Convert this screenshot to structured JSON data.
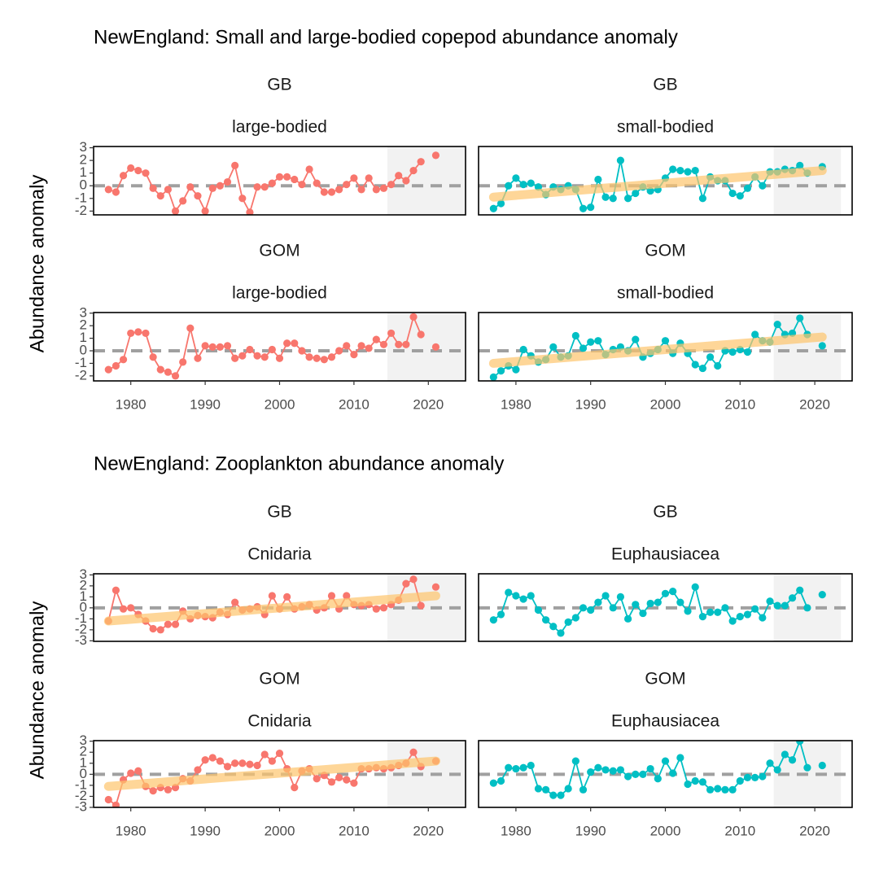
{
  "figures": [
    {
      "title": "NewEngland: Small and large-bodied copepod abundance anomaly",
      "y_label": "Abundance anomaly"
    },
    {
      "title": "NewEngland: Zooplankton abundance anomaly",
      "y_label": "Abundance anomaly"
    }
  ],
  "chart_data": [
    {
      "type": "line",
      "region": "GB",
      "group": "large-bodied",
      "color": "#f8766d",
      "x": [
        1977,
        1978,
        1979,
        1980,
        1981,
        1982,
        1983,
        1984,
        1985,
        1986,
        1987,
        1988,
        1989,
        1990,
        1991,
        1992,
        1993,
        1994,
        1995,
        1996,
        1997,
        1998,
        1999,
        2000,
        2001,
        2002,
        2003,
        2004,
        2005,
        2006,
        2007,
        2008,
        2009,
        2010,
        2011,
        2012,
        2013,
        2014,
        2015,
        2016,
        2017,
        2018,
        2019,
        2020,
        2021
      ],
      "values": [
        -0.3,
        -0.5,
        0.8,
        1.4,
        1.2,
        1.0,
        -0.2,
        -0.8,
        -0.3,
        -2.0,
        -1.2,
        -0.1,
        -0.8,
        -2.0,
        -0.2,
        0.0,
        0.3,
        1.6,
        -1.0,
        -2.1,
        -0.1,
        -0.1,
        0.2,
        0.7,
        0.7,
        0.5,
        0.1,
        1.3,
        0.2,
        -0.5,
        -0.5,
        -0.3,
        0.1,
        0.6,
        -0.3,
        0.6,
        -0.3,
        -0.2,
        0.1,
        0.8,
        0.4,
        1.2,
        1.9,
        null,
        2.4
      ],
      "xlim": [
        1975,
        2025
      ],
      "ylim": [
        -2.3,
        3.1
      ],
      "yticks": [
        -2,
        -1,
        0,
        1,
        2,
        3
      ],
      "reference_line": 0,
      "highlight": [
        2014.5,
        2025
      ]
    },
    {
      "type": "line",
      "region": "GB",
      "group": "small-bodied",
      "color": "#00bfc4",
      "x": [
        1977,
        1978,
        1979,
        1980,
        1981,
        1982,
        1983,
        1984,
        1985,
        1986,
        1987,
        1988,
        1989,
        1990,
        1991,
        1992,
        1993,
        1994,
        1995,
        1996,
        1997,
        1998,
        1999,
        2000,
        2001,
        2002,
        2003,
        2004,
        2005,
        2006,
        2007,
        2008,
        2009,
        2010,
        2011,
        2012,
        2013,
        2014,
        2015,
        2016,
        2017,
        2018,
        2019,
        2020,
        2021
      ],
      "values": [
        -1.8,
        -1.4,
        0.0,
        0.6,
        0.1,
        0.2,
        -0.1,
        -0.7,
        -0.1,
        -0.3,
        0.0,
        -0.3,
        -1.8,
        -1.7,
        0.5,
        -0.9,
        -1.0,
        2.0,
        -1.0,
        -0.6,
        -0.1,
        -0.4,
        -0.3,
        0.6,
        1.3,
        1.2,
        1.1,
        1.2,
        -1.0,
        0.7,
        0.4,
        0.4,
        -0.6,
        -0.8,
        -0.2,
        0.7,
        0.0,
        1.1,
        1.1,
        1.3,
        1.2,
        1.6,
        1.0,
        null,
        1.5
      ],
      "trend": {
        "x": [
          1977,
          2021
        ],
        "values": [
          -0.9,
          1.2
        ],
        "color": "#fdc46c"
      },
      "xlim": [
        1975,
        2025
      ],
      "ylim": [
        -2.3,
        3.1
      ],
      "reference_line": 0,
      "highlight": [
        2014.5,
        2023.5
      ]
    },
    {
      "type": "line",
      "region": "GOM",
      "group": "large-bodied",
      "color": "#f8766d",
      "x": [
        1977,
        1978,
        1979,
        1980,
        1981,
        1982,
        1983,
        1984,
        1985,
        1986,
        1987,
        1988,
        1989,
        1990,
        1991,
        1992,
        1993,
        1994,
        1995,
        1996,
        1997,
        1998,
        1999,
        2000,
        2001,
        2002,
        2003,
        2004,
        2005,
        2006,
        2007,
        2008,
        2009,
        2010,
        2011,
        2012,
        2013,
        2014,
        2015,
        2016,
        2017,
        2018,
        2019,
        2020,
        2021
      ],
      "values": [
        -1.5,
        -1.2,
        -0.7,
        1.4,
        1.5,
        1.4,
        -0.5,
        -1.5,
        -1.7,
        -2.0,
        -0.9,
        1.8,
        -0.6,
        0.4,
        0.3,
        0.3,
        0.4,
        -0.6,
        -0.4,
        0.1,
        -0.4,
        -0.5,
        0.1,
        -0.6,
        0.6,
        0.6,
        0.0,
        -0.5,
        -0.6,
        -0.7,
        -0.5,
        0.0,
        0.4,
        -0.3,
        0.4,
        0.2,
        0.9,
        0.5,
        1.4,
        0.5,
        0.5,
        2.7,
        1.3,
        null,
        0.3
      ],
      "xlim": [
        1975,
        2025
      ],
      "xticks": [
        1980,
        1990,
        2000,
        2010,
        2020
      ],
      "ylim": [
        -2.4,
        3.05
      ],
      "yticks": [
        -2,
        -1,
        0,
        1,
        2,
        3
      ],
      "reference_line": 0,
      "highlight": [
        2014.5,
        2025
      ]
    },
    {
      "type": "line",
      "region": "GOM",
      "group": "small-bodied",
      "color": "#00bfc4",
      "x": [
        1977,
        1978,
        1979,
        1980,
        1981,
        1982,
        1983,
        1984,
        1985,
        1986,
        1987,
        1988,
        1989,
        1990,
        1991,
        1992,
        1993,
        1994,
        1995,
        1996,
        1997,
        1998,
        1999,
        2000,
        2001,
        2002,
        2003,
        2004,
        2005,
        2006,
        2007,
        2008,
        2009,
        2010,
        2011,
        2012,
        2013,
        2014,
        2015,
        2016,
        2017,
        2018,
        2019,
        2020,
        2021
      ],
      "values": [
        -2.1,
        -1.6,
        -1.2,
        -1.5,
        0.1,
        -0.4,
        -0.9,
        -0.7,
        0.3,
        -0.5,
        -0.4,
        1.2,
        0.2,
        0.7,
        0.8,
        -0.3,
        0.1,
        0.3,
        0.0,
        0.9,
        -0.5,
        -0.2,
        0.1,
        0.8,
        -0.2,
        0.6,
        -0.2,
        -1.1,
        -1.4,
        -0.5,
        -1.2,
        0.0,
        -0.1,
        0.1,
        -0.1,
        1.3,
        0.8,
        0.7,
        2.1,
        1.3,
        1.4,
        2.6,
        1.3,
        null,
        0.4
      ],
      "trend": {
        "x": [
          1977,
          2021
        ],
        "values": [
          -1.0,
          1.1
        ],
        "color": "#fdc46c"
      },
      "xlim": [
        1975,
        2025
      ],
      "xticks": [
        1980,
        1990,
        2000,
        2010,
        2020
      ],
      "ylim": [
        -2.4,
        3.05
      ],
      "reference_line": 0,
      "highlight": [
        2014.5,
        2023.5
      ]
    },
    {
      "type": "line",
      "region": "GB",
      "group": "Cnidaria",
      "color": "#f8766d",
      "x": [
        1977,
        1978,
        1979,
        1980,
        1981,
        1982,
        1983,
        1984,
        1985,
        1986,
        1987,
        1988,
        1989,
        1990,
        1991,
        1992,
        1993,
        1994,
        1995,
        1996,
        1997,
        1998,
        1999,
        2000,
        2001,
        2002,
        2003,
        2004,
        2005,
        2006,
        2007,
        2008,
        2009,
        2010,
        2011,
        2012,
        2013,
        2014,
        2015,
        2016,
        2017,
        2018,
        2019,
        2020,
        2021
      ],
      "values": [
        -1.2,
        1.6,
        -0.1,
        0.0,
        -0.6,
        -1.2,
        -1.9,
        -2.0,
        -1.5,
        -1.5,
        -0.3,
        -1.0,
        -0.7,
        -0.8,
        -0.9,
        -0.4,
        -0.6,
        0.5,
        -0.2,
        -0.1,
        0.1,
        -0.6,
        1.1,
        -0.1,
        1.0,
        -0.1,
        0.1,
        0.3,
        -0.2,
        0.0,
        1.1,
        -0.1,
        1.1,
        0.3,
        0.2,
        0.3,
        -0.1,
        0.0,
        0.3,
        0.7,
        2.2,
        2.6,
        0.2,
        null,
        1.9
      ],
      "trend": {
        "x": [
          1977,
          2021
        ],
        "values": [
          -1.2,
          1.1
        ],
        "color": "#fdc46c"
      },
      "xlim": [
        1975,
        2025
      ],
      "ylim": [
        -3.05,
        3.1
      ],
      "yticks": [
        -3,
        -2,
        -1,
        0,
        1,
        2,
        3
      ],
      "reference_line": 0,
      "highlight": [
        2014.5,
        2025
      ]
    },
    {
      "type": "line",
      "region": "GB",
      "group": "Euphausiacea",
      "color": "#00bfc4",
      "x": [
        1977,
        1978,
        1979,
        1980,
        1981,
        1982,
        1983,
        1984,
        1985,
        1986,
        1987,
        1988,
        1989,
        1990,
        1991,
        1992,
        1993,
        1994,
        1995,
        1996,
        1997,
        1998,
        1999,
        2000,
        2001,
        2002,
        2003,
        2004,
        2005,
        2006,
        2007,
        2008,
        2009,
        2010,
        2011,
        2012,
        2013,
        2014,
        2015,
        2016,
        2017,
        2018,
        2019,
        2020,
        2021
      ],
      "values": [
        -1.1,
        -0.6,
        1.4,
        1.1,
        0.8,
        1.1,
        -0.2,
        -1.1,
        -1.7,
        -2.3,
        -1.3,
        -0.9,
        0.0,
        -0.2,
        0.5,
        1.1,
        0.0,
        1.0,
        -1.0,
        0.3,
        -0.5,
        0.4,
        0.5,
        1.3,
        1.5,
        0.5,
        -0.3,
        1.9,
        -0.8,
        -0.4,
        -0.4,
        0.0,
        -1.2,
        -0.8,
        -0.6,
        -0.1,
        -0.9,
        0.6,
        0.2,
        0.2,
        0.9,
        1.6,
        0.0,
        null,
        1.2
      ],
      "xlim": [
        1975,
        2025
      ],
      "ylim": [
        -3.05,
        3.1
      ],
      "reference_line": 0,
      "highlight": [
        2014.5,
        2023.5
      ]
    },
    {
      "type": "line",
      "region": "GOM",
      "group": "Cnidaria",
      "color": "#f8766d",
      "x": [
        1977,
        1978,
        1979,
        1980,
        1981,
        1982,
        1983,
        1984,
        1985,
        1986,
        1987,
        1988,
        1989,
        1990,
        1991,
        1992,
        1993,
        1994,
        1995,
        1996,
        1997,
        1998,
        1999,
        2000,
        2001,
        2002,
        2003,
        2004,
        2005,
        2006,
        2007,
        2008,
        2009,
        2010,
        2011,
        2012,
        2013,
        2014,
        2015,
        2016,
        2017,
        2018,
        2019,
        2020,
        2021
      ],
      "values": [
        -2.3,
        -2.8,
        -0.5,
        0.1,
        0.3,
        -1.1,
        -1.5,
        -1.2,
        -1.4,
        -1.2,
        -0.4,
        -0.6,
        0.4,
        1.3,
        1.5,
        1.2,
        0.7,
        1.0,
        1.0,
        0.9,
        0.8,
        1.8,
        1.2,
        1.9,
        0.5,
        -1.2,
        0.3,
        0.5,
        -0.4,
        -0.1,
        -0.7,
        -0.3,
        -0.5,
        -0.8,
        0.5,
        0.5,
        0.6,
        0.5,
        0.6,
        0.8,
        1.0,
        2.0,
        0.7,
        null,
        1.2
      ],
      "trend": {
        "x": [
          1977,
          2021
        ],
        "values": [
          -1.1,
          1.2
        ],
        "color": "#fdc46c"
      },
      "xlim": [
        1975,
        2025
      ],
      "xticks": [
        1980,
        1990,
        2000,
        2010,
        2020
      ],
      "ylim": [
        -3,
        3.05
      ],
      "yticks": [
        -3,
        -2,
        -1,
        0,
        1,
        2,
        3
      ],
      "reference_line": 0,
      "highlight": [
        2014.5,
        2025
      ]
    },
    {
      "type": "line",
      "region": "GOM",
      "group": "Euphausiacea",
      "color": "#00bfc4",
      "x": [
        1977,
        1978,
        1979,
        1980,
        1981,
        1982,
        1983,
        1984,
        1985,
        1986,
        1987,
        1988,
        1989,
        1990,
        1991,
        1992,
        1993,
        1994,
        1995,
        1996,
        1997,
        1998,
        1999,
        2000,
        2001,
        2002,
        2003,
        2004,
        2005,
        2006,
        2007,
        2008,
        2009,
        2010,
        2011,
        2012,
        2013,
        2014,
        2015,
        2016,
        2017,
        2018,
        2019,
        2020,
        2021
      ],
      "values": [
        -0.8,
        -0.6,
        0.6,
        0.5,
        0.6,
        0.8,
        -1.3,
        -1.4,
        -1.9,
        -1.9,
        -1.3,
        1.2,
        -1.4,
        0.2,
        0.6,
        0.4,
        0.3,
        0.4,
        -0.2,
        0.0,
        0.0,
        0.5,
        -0.4,
        1.2,
        0.1,
        1.5,
        -0.9,
        -0.6,
        -0.7,
        -1.4,
        -1.3,
        -1.4,
        -1.4,
        -0.6,
        -0.3,
        -0.3,
        -0.2,
        1.0,
        0.4,
        1.8,
        1.3,
        3.0,
        0.6,
        null,
        0.8
      ],
      "xlim": [
        1975,
        2025
      ],
      "xticks": [
        1980,
        1990,
        2000,
        2010,
        2020
      ],
      "ylim": [
        -3,
        3.05
      ],
      "reference_line": 0,
      "highlight": [
        2014.5,
        2023.5
      ]
    }
  ]
}
